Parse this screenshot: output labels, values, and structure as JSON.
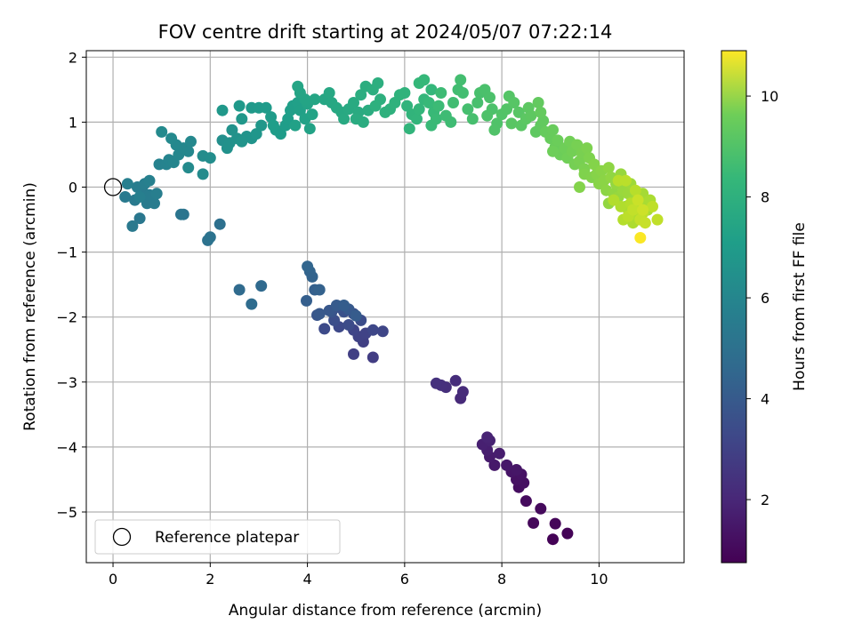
{
  "chart_data": {
    "type": "scatter",
    "title": "FOV centre drift starting at 2024/05/07 07:22:14",
    "xlabel": "Angular distance from reference (arcmin)",
    "ylabel": "Rotation from reference (arcmin)",
    "colorbar_label": "Hours from first FF file",
    "colormap": "viridis",
    "xlim": [
      -0.55,
      11.75
    ],
    "ylim": [
      -5.78,
      2.1
    ],
    "clim": [
      0.75,
      10.9
    ],
    "xticks": [
      0,
      2,
      4,
      6,
      8,
      10
    ],
    "yticks": [
      -5,
      -4,
      -3,
      -2,
      -1,
      0,
      1,
      2
    ],
    "cticks": [
      2,
      4,
      6,
      8,
      10
    ],
    "grid": true,
    "legend": {
      "placement": "lower-left",
      "entries": [
        {
          "label": "Reference platepar",
          "marker": "open-circle"
        }
      ]
    },
    "reference_point": {
      "x": 0,
      "y": 0
    },
    "points": [
      [
        9.05,
        -5.42,
        0.8
      ],
      [
        9.35,
        -5.33,
        0.85
      ],
      [
        9.1,
        -5.18,
        0.9
      ],
      [
        8.65,
        -5.17,
        0.95
      ],
      [
        8.8,
        -4.95,
        1.0
      ],
      [
        8.5,
        -4.83,
        1.05
      ],
      [
        8.35,
        -4.62,
        1.1
      ],
      [
        8.45,
        -4.55,
        1.15
      ],
      [
        8.3,
        -4.5,
        1.2
      ],
      [
        8.4,
        -4.42,
        1.25
      ],
      [
        8.2,
        -4.38,
        1.3
      ],
      [
        8.3,
        -4.35,
        1.35
      ],
      [
        8.1,
        -4.28,
        1.4
      ],
      [
        7.85,
        -4.28,
        1.45
      ],
      [
        7.75,
        -4.15,
        1.5
      ],
      [
        7.95,
        -4.1,
        1.55
      ],
      [
        7.7,
        -4.05,
        1.6
      ],
      [
        7.6,
        -3.96,
        1.65
      ],
      [
        7.75,
        -3.9,
        1.7
      ],
      [
        7.7,
        -3.85,
        1.75
      ],
      [
        7.15,
        -3.25,
        1.95
      ],
      [
        7.2,
        -3.15,
        2.0
      ],
      [
        7.05,
        -2.98,
        2.05
      ],
      [
        6.85,
        -3.08,
        2.1
      ],
      [
        6.75,
        -3.05,
        2.15
      ],
      [
        6.65,
        -3.02,
        2.2
      ],
      [
        5.35,
        -2.62,
        2.6
      ],
      [
        4.95,
        -2.57,
        2.65
      ],
      [
        5.15,
        -2.38,
        2.7
      ],
      [
        5.05,
        -2.3,
        2.75
      ],
      [
        5.2,
        -2.25,
        2.8
      ],
      [
        4.95,
        -2.2,
        2.85
      ],
      [
        5.55,
        -2.22,
        2.9
      ],
      [
        5.35,
        -2.2,
        2.95
      ],
      [
        4.65,
        -2.15,
        3.0
      ],
      [
        4.35,
        -2.18,
        3.05
      ],
      [
        4.85,
        -2.12,
        3.1
      ],
      [
        5.1,
        -2.05,
        3.15
      ],
      [
        4.55,
        -2.05,
        3.2
      ],
      [
        4.95,
        -1.95,
        3.25
      ],
      [
        4.75,
        -1.92,
        3.3
      ],
      [
        4.65,
        -1.85,
        3.35
      ],
      [
        4.5,
        -1.92,
        3.4
      ],
      [
        4.2,
        -1.97,
        3.45
      ],
      [
        4.45,
        -1.9,
        3.5
      ],
      [
        4.25,
        -1.95,
        3.55
      ],
      [
        4.85,
        -1.88,
        3.6
      ],
      [
        4.6,
        -1.82,
        3.65
      ],
      [
        5.0,
        -1.98,
        3.7
      ],
      [
        4.75,
        -1.82,
        3.75
      ],
      [
        3.98,
        -1.75,
        3.8
      ],
      [
        4.15,
        -1.58,
        3.85
      ],
      [
        4.25,
        -1.58,
        3.9
      ],
      [
        4.1,
        -1.38,
        3.95
      ],
      [
        4.05,
        -1.3,
        4.0
      ],
      [
        4.0,
        -1.22,
        4.05
      ],
      [
        3.05,
        -1.52,
        4.2
      ],
      [
        2.6,
        -1.58,
        4.25
      ],
      [
        2.85,
        -1.8,
        4.3
      ],
      [
        2.2,
        -0.57,
        4.5
      ],
      [
        1.95,
        -0.82,
        4.55
      ],
      [
        2.0,
        -0.77,
        4.6
      ],
      [
        1.45,
        -0.42,
        4.65
      ],
      [
        1.4,
        -0.42,
        4.7
      ],
      [
        0.55,
        -0.48,
        4.8
      ],
      [
        0.4,
        -0.6,
        4.85
      ],
      [
        0.25,
        -0.15,
        4.9
      ],
      [
        0.45,
        -0.2,
        4.92
      ],
      [
        0.6,
        -0.05,
        4.95
      ],
      [
        0.7,
        -0.25,
        4.97
      ],
      [
        0.85,
        -0.25,
        5.0
      ],
      [
        0.75,
        -0.12,
        5.02
      ],
      [
        0.5,
        0.0,
        5.05
      ],
      [
        0.9,
        -0.1,
        5.08
      ],
      [
        0.65,
        0.05,
        5.1
      ],
      [
        0.55,
        -0.15,
        5.12
      ],
      [
        0.3,
        0.05,
        5.15
      ],
      [
        0.75,
        0.1,
        5.18
      ],
      [
        0.95,
        0.35,
        5.25
      ],
      [
        1.1,
        0.35,
        5.3
      ],
      [
        1.15,
        0.42,
        5.35
      ],
      [
        1.25,
        0.38,
        5.4
      ],
      [
        1.35,
        0.5,
        5.42
      ],
      [
        1.45,
        0.6,
        5.45
      ],
      [
        1.55,
        0.55,
        5.48
      ],
      [
        1.6,
        0.7,
        5.5
      ],
      [
        1.3,
        0.65,
        5.52
      ],
      [
        1.2,
        0.75,
        5.55
      ],
      [
        1.0,
        0.85,
        5.58
      ],
      [
        1.55,
        0.3,
        5.6
      ],
      [
        1.85,
        0.2,
        5.62
      ],
      [
        1.85,
        0.48,
        5.65
      ],
      [
        2.0,
        0.45,
        5.7
      ],
      [
        2.25,
        0.72,
        5.8
      ],
      [
        2.4,
        0.68,
        5.85
      ],
      [
        2.35,
        0.6,
        5.88
      ],
      [
        2.55,
        0.75,
        5.9
      ],
      [
        2.45,
        0.88,
        5.92
      ],
      [
        2.75,
        0.78,
        5.95
      ],
      [
        2.65,
        0.7,
        5.98
      ],
      [
        2.85,
        0.75,
        6.0
      ],
      [
        2.95,
        0.82,
        6.05
      ],
      [
        3.05,
        0.95,
        6.1
      ],
      [
        2.65,
        1.05,
        6.12
      ],
      [
        2.25,
        1.18,
        6.15
      ],
      [
        2.6,
        1.25,
        6.18
      ],
      [
        2.85,
        1.22,
        6.2
      ],
      [
        3.0,
        1.22,
        6.22
      ],
      [
        3.15,
        1.22,
        6.25
      ],
      [
        3.25,
        1.08,
        6.28
      ],
      [
        3.35,
        0.88,
        6.3
      ],
      [
        3.45,
        0.82,
        6.32
      ],
      [
        3.55,
        0.95,
        6.35
      ],
      [
        3.3,
        0.95,
        6.38
      ],
      [
        3.6,
        1.05,
        6.4
      ],
      [
        3.65,
        1.18,
        6.42
      ],
      [
        3.7,
        1.25,
        6.45
      ],
      [
        3.8,
        1.3,
        6.48
      ],
      [
        3.85,
        1.18,
        6.5
      ],
      [
        3.75,
        0.95,
        6.52
      ],
      [
        3.95,
        1.05,
        6.55
      ],
      [
        4.05,
        0.9,
        6.58
      ],
      [
        4.1,
        1.12,
        6.6
      ],
      [
        4.0,
        1.28,
        6.62
      ],
      [
        3.95,
        1.35,
        6.65
      ],
      [
        3.85,
        1.45,
        6.68
      ],
      [
        3.8,
        1.55,
        6.7
      ],
      [
        4.15,
        1.35,
        6.72
      ],
      [
        4.35,
        1.35,
        6.75
      ],
      [
        4.45,
        1.45,
        6.78
      ],
      [
        4.5,
        1.3,
        6.8
      ],
      [
        4.6,
        1.22,
        6.82
      ],
      [
        4.7,
        1.15,
        6.85
      ],
      [
        4.75,
        1.05,
        6.88
      ],
      [
        4.85,
        1.2,
        6.9
      ],
      [
        4.95,
        1.3,
        6.92
      ],
      [
        5.05,
        1.15,
        6.95
      ],
      [
        5.0,
        1.05,
        6.98
      ],
      [
        5.15,
        1.0,
        7.0
      ],
      [
        5.25,
        1.18,
        7.02
      ],
      [
        5.1,
        1.42,
        7.05
      ],
      [
        5.2,
        1.55,
        7.08
      ],
      [
        5.35,
        1.5,
        7.1
      ],
      [
        5.45,
        1.6,
        7.12
      ],
      [
        5.5,
        1.35,
        7.15
      ],
      [
        5.4,
        1.25,
        7.18
      ],
      [
        5.6,
        1.15,
        7.2
      ],
      [
        5.7,
        1.2,
        7.22
      ],
      [
        5.8,
        1.3,
        7.25
      ],
      [
        5.9,
        1.42,
        7.28
      ],
      [
        6.0,
        1.45,
        7.3
      ],
      [
        6.05,
        1.25,
        7.32
      ],
      [
        6.15,
        1.12,
        7.35
      ],
      [
        6.1,
        0.9,
        7.38
      ],
      [
        6.25,
        1.05,
        7.4
      ],
      [
        6.3,
        1.2,
        7.42
      ],
      [
        6.4,
        1.35,
        7.45
      ],
      [
        6.55,
        1.5,
        7.48
      ],
      [
        6.3,
        1.6,
        7.5
      ],
      [
        6.4,
        1.65,
        7.52
      ],
      [
        6.5,
        1.3,
        7.55
      ],
      [
        6.6,
        1.15,
        7.58
      ],
      [
        6.55,
        0.95,
        7.6
      ],
      [
        6.65,
        1.05,
        7.62
      ],
      [
        6.7,
        1.25,
        7.65
      ],
      [
        6.75,
        1.45,
        7.68
      ],
      [
        6.85,
        1.1,
        7.7
      ],
      [
        6.95,
        1.0,
        7.72
      ],
      [
        7.0,
        1.3,
        7.75
      ],
      [
        7.1,
        1.5,
        7.78
      ],
      [
        7.2,
        1.45,
        7.8
      ],
      [
        7.15,
        1.65,
        7.82
      ],
      [
        7.3,
        1.2,
        7.85
      ],
      [
        7.4,
        1.05,
        7.88
      ],
      [
        7.5,
        1.3,
        7.9
      ],
      [
        7.55,
        1.45,
        7.92
      ],
      [
        7.65,
        1.5,
        7.95
      ],
      [
        7.75,
        1.38,
        7.98
      ],
      [
        7.8,
        1.2,
        8.0
      ],
      [
        7.7,
        1.1,
        8.02
      ],
      [
        7.9,
        0.98,
        8.05
      ],
      [
        7.85,
        0.88,
        8.08
      ],
      [
        8.0,
        1.12,
        8.1
      ],
      [
        8.1,
        1.2,
        8.12
      ],
      [
        8.15,
        1.4,
        8.15
      ],
      [
        8.25,
        1.3,
        8.18
      ],
      [
        8.35,
        1.15,
        8.2
      ],
      [
        8.2,
        0.98,
        8.22
      ],
      [
        8.4,
        0.95,
        8.25
      ],
      [
        8.5,
        1.05,
        8.28
      ],
      [
        8.55,
        1.22,
        8.3
      ],
      [
        8.6,
        1.1,
        8.32
      ],
      [
        8.7,
        0.85,
        8.35
      ],
      [
        8.8,
        0.95,
        8.38
      ],
      [
        8.85,
        1.02,
        8.4
      ],
      [
        8.75,
        1.3,
        8.42
      ],
      [
        8.8,
        1.15,
        8.45
      ],
      [
        8.9,
        0.85,
        8.48
      ],
      [
        9.0,
        0.75,
        8.5
      ],
      [
        9.05,
        0.88,
        8.52
      ],
      [
        9.1,
        0.62,
        8.55
      ],
      [
        9.15,
        0.72,
        8.58
      ],
      [
        9.2,
        0.5,
        8.6
      ],
      [
        9.05,
        0.55,
        8.62
      ],
      [
        9.3,
        0.6,
        8.65
      ],
      [
        9.35,
        0.45,
        8.68
      ],
      [
        9.4,
        0.7,
        8.7
      ],
      [
        9.45,
        0.55,
        8.72
      ],
      [
        9.5,
        0.35,
        8.75
      ],
      [
        9.55,
        0.65,
        8.78
      ],
      [
        9.6,
        0.4,
        8.8
      ],
      [
        9.65,
        0.52,
        8.82
      ],
      [
        9.7,
        0.28,
        8.85
      ],
      [
        9.75,
        0.6,
        8.88
      ],
      [
        9.8,
        0.45,
        8.9
      ],
      [
        9.7,
        0.2,
        8.92
      ],
      [
        9.85,
        0.15,
        8.95
      ],
      [
        9.6,
        0.0,
        8.98
      ],
      [
        9.9,
        0.35,
        9.0
      ],
      [
        9.95,
        0.2,
        9.02
      ],
      [
        10.0,
        0.05,
        9.05
      ],
      [
        10.05,
        0.25,
        9.08
      ],
      [
        10.1,
        0.1,
        9.1
      ],
      [
        10.15,
        -0.05,
        9.12
      ],
      [
        10.2,
        0.3,
        9.15
      ],
      [
        10.25,
        0.15,
        9.18
      ],
      [
        10.3,
        -0.1,
        9.2
      ],
      [
        10.2,
        -0.25,
        9.22
      ],
      [
        10.35,
        0.05,
        9.25
      ],
      [
        10.4,
        -0.15,
        9.28
      ],
      [
        10.45,
        0.2,
        9.3
      ],
      [
        10.5,
        -0.05,
        9.32
      ],
      [
        10.55,
        -0.3,
        9.35
      ],
      [
        10.6,
        -0.1,
        9.38
      ],
      [
        10.65,
        0.05,
        9.4
      ],
      [
        10.7,
        -0.2,
        9.42
      ],
      [
        10.75,
        -0.4,
        9.45
      ],
      [
        10.8,
        -0.15,
        9.48
      ],
      [
        10.85,
        -0.3,
        9.5
      ],
      [
        10.9,
        -0.1,
        9.52
      ],
      [
        10.95,
        -0.25,
        9.55
      ],
      [
        11.0,
        -0.35,
        9.58
      ],
      [
        11.05,
        -0.2,
        9.6
      ],
      [
        10.6,
        -0.35,
        9.62
      ],
      [
        10.7,
        -0.55,
        9.65
      ],
      [
        10.8,
        -0.45,
        9.68
      ],
      [
        10.45,
        -0.3,
        9.7
      ],
      [
        10.3,
        -0.2,
        9.72
      ],
      [
        10.5,
        -0.5,
        9.75
      ],
      [
        10.65,
        -0.25,
        9.78
      ],
      [
        10.75,
        -0.05,
        9.8
      ],
      [
        10.4,
        0.1,
        9.82
      ],
      [
        10.55,
        0.1,
        9.85
      ],
      [
        10.6,
        -0.45,
        9.88
      ],
      [
        10.9,
        -0.4,
        9.9
      ],
      [
        11.1,
        -0.3,
        9.92
      ],
      [
        11.2,
        -0.5,
        9.95
      ],
      [
        10.7,
        -0.35,
        9.98
      ],
      [
        10.85,
        -0.5,
        10.0
      ],
      [
        10.95,
        -0.55,
        10.05
      ],
      [
        10.8,
        -0.2,
        10.1
      ],
      [
        10.9,
        -0.35,
        10.15
      ],
      [
        10.85,
        -0.78,
        10.85
      ]
    ]
  }
}
